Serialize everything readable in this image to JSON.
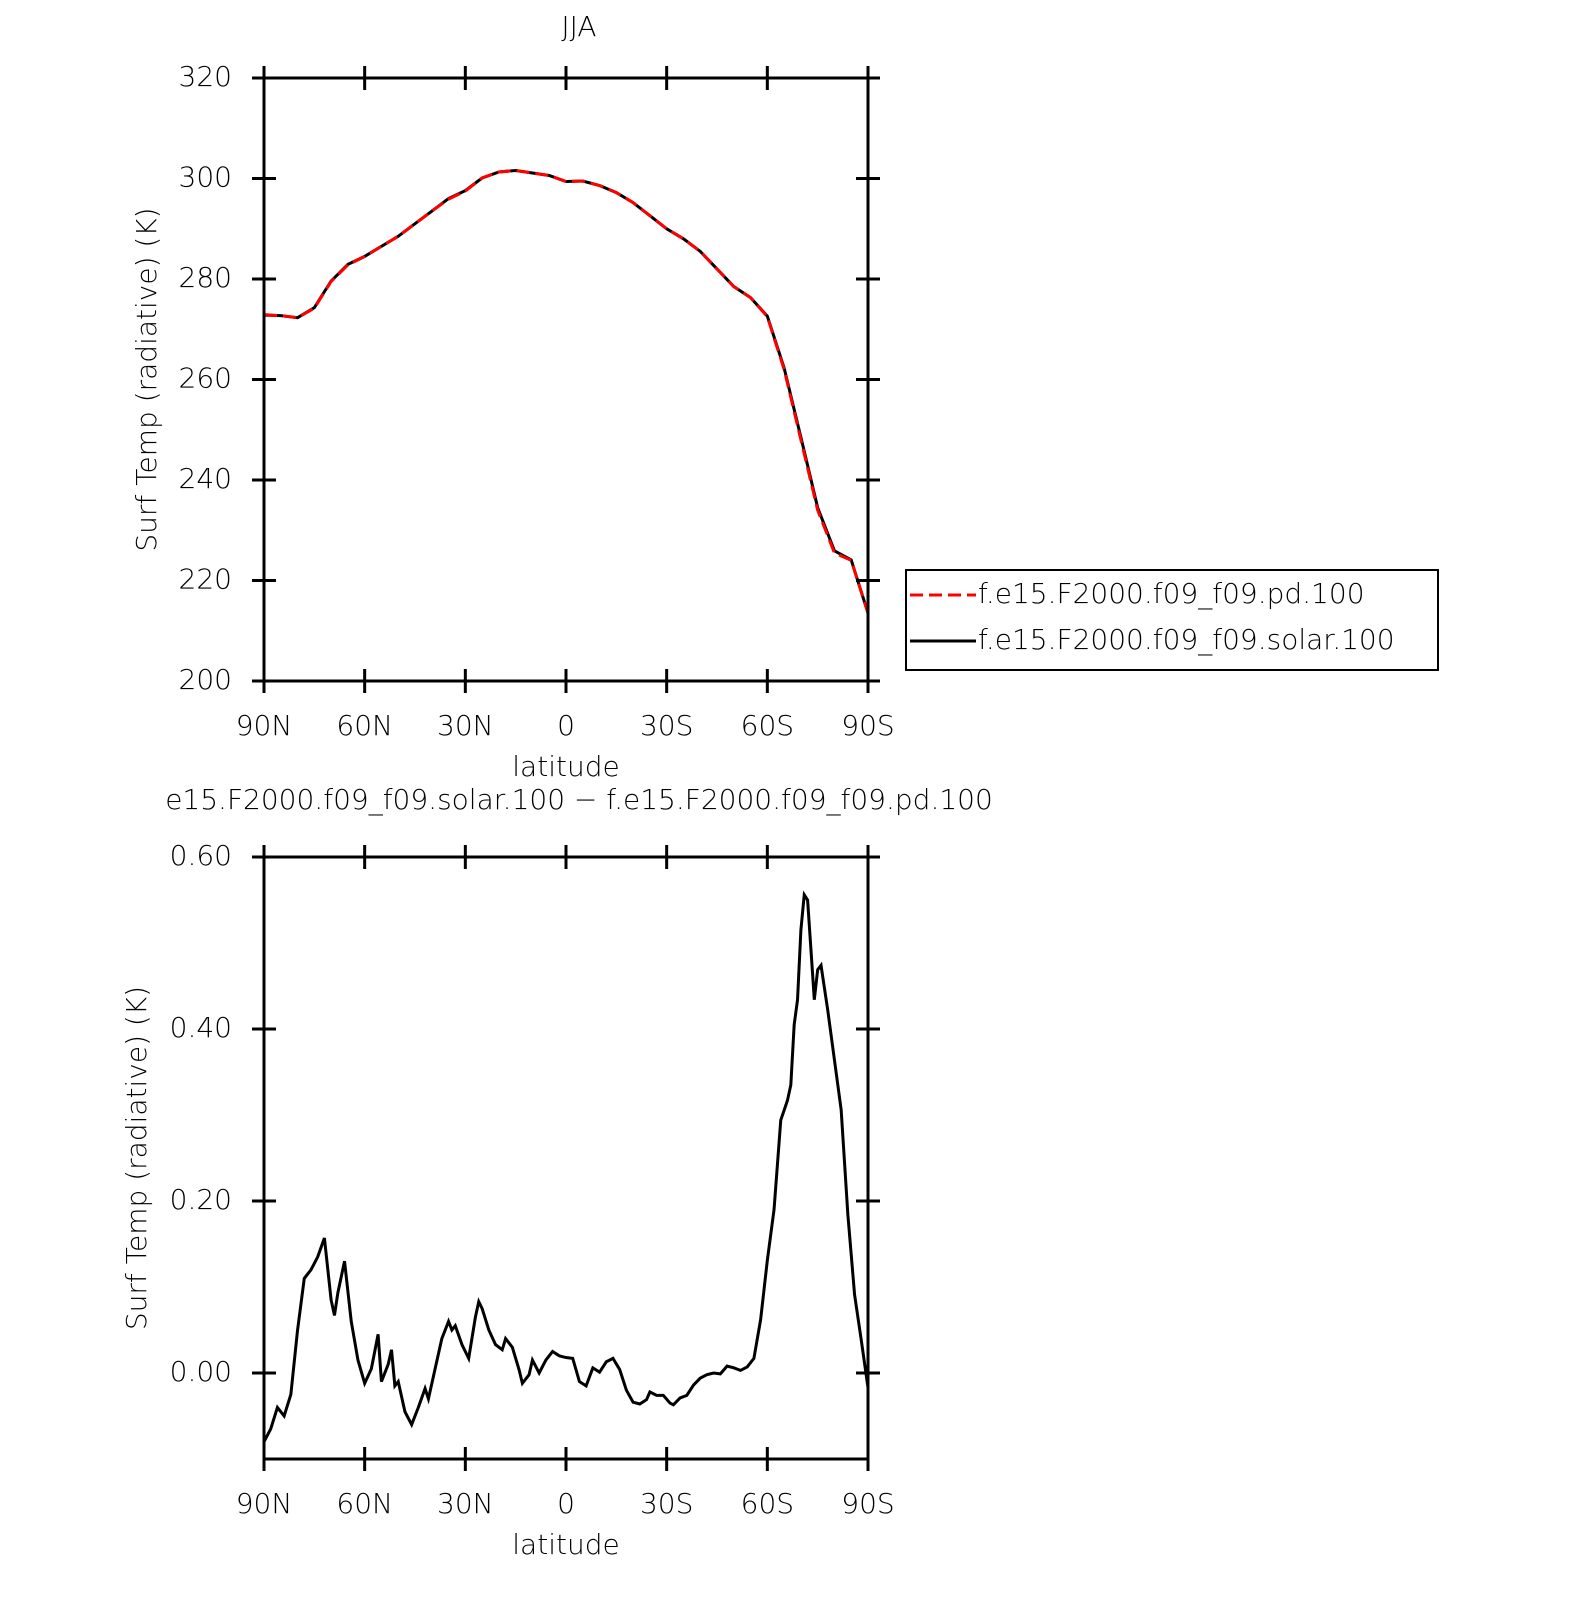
{
  "chart_data": [
    {
      "type": "line",
      "title": "JJA",
      "xlabel": "latitude",
      "ylabel": "Surf Temp (radiative) (K)",
      "x": [
        90,
        85,
        80,
        75,
        70,
        65,
        60,
        55,
        50,
        45,
        40,
        35,
        30,
        25,
        20,
        15,
        10,
        5,
        0,
        -5,
        -10,
        -15,
        -20,
        -25,
        -30,
        -35,
        -40,
        -45,
        -50,
        -55,
        -60,
        -65,
        -70,
        -75,
        -80,
        -85,
        -90
      ],
      "series": [
        {
          "name": "f.e15.F2000.f09_f09.pd.100",
          "color": "#ff0000",
          "line_style": "dashed",
          "values": [
            272.9,
            272.7,
            272.3,
            274.2,
            279.5,
            282.8,
            284.5,
            286.5,
            288.5,
            291,
            293.5,
            295.9,
            297.5,
            300.1,
            301.3,
            301.6,
            301.1,
            300.6,
            299.4,
            299.5,
            298.6,
            297.2,
            295.2,
            292.6,
            290,
            288,
            285.5,
            282,
            278.5,
            276.3,
            272.5,
            262,
            248,
            234,
            225.5,
            224,
            213.5
          ]
        },
        {
          "name": "f.e15.F2000.f09_f09.solar.100",
          "color": "#000000",
          "line_style": "solid",
          "values": [
            272.8,
            272.7,
            272.3,
            274.3,
            279.6,
            282.9,
            284.5,
            286.5,
            288.5,
            291,
            293.5,
            296,
            297.6,
            300.1,
            301.3,
            301.6,
            301.1,
            300.6,
            299.4,
            299.5,
            298.6,
            297.2,
            295.2,
            292.6,
            290,
            288,
            285.5,
            282,
            278.5,
            276.3,
            272.6,
            262.3,
            248.5,
            234.5,
            225.9,
            224.1,
            213.5
          ]
        }
      ],
      "xlim": [
        90,
        -90
      ],
      "xticks": [
        {
          "value": 90,
          "label": "90N"
        },
        {
          "value": 60,
          "label": "60N"
        },
        {
          "value": 30,
          "label": "30N"
        },
        0,
        {
          "value": -30,
          "label": "30S"
        },
        {
          "value": -60,
          "label": "60S"
        },
        {
          "value": -90,
          "label": "90S"
        }
      ],
      "ylim": [
        200,
        320
      ],
      "yticks": [
        200,
        220,
        240,
        260,
        280,
        300,
        320
      ],
      "legend": "right"
    },
    {
      "type": "line",
      "title": "e15.F2000.f09_f09.solar.100 − f.e15.F2000.f09_f09.pd.100",
      "xlabel": "latitude",
      "ylabel": "Surf Temp (radiative) (K)",
      "x": [
        90,
        88,
        86,
        84,
        82,
        80,
        78,
        76,
        74,
        72,
        70,
        69,
        68,
        66,
        64,
        62,
        60,
        58,
        56,
        55,
        53,
        52,
        51,
        50,
        48,
        46,
        44,
        42,
        41,
        39,
        37,
        35,
        34,
        33,
        31,
        29,
        27,
        26,
        25,
        23,
        21,
        19,
        18,
        16,
        14,
        13,
        11,
        10,
        8,
        6,
        4,
        2,
        0,
        -2,
        -4,
        -6,
        -8,
        -10,
        -12,
        -14,
        -16,
        -18,
        -20,
        -22,
        -24,
        -25,
        -27,
        -29,
        -31,
        -32,
        -34,
        -36,
        -38,
        -40,
        -42,
        -44,
        -46,
        -48,
        -50,
        -52,
        -54,
        -56,
        -58,
        -60,
        -62,
        -64,
        -66,
        -67,
        -68,
        -69,
        -70,
        -71,
        -72,
        -73,
        -74,
        -75,
        -76,
        -78,
        -80,
        -82,
        -84,
        -86,
        -88,
        -90
      ],
      "values": [
        -0.08,
        -0.065,
        -0.04,
        -0.05,
        -0.025,
        0.05,
        0.11,
        0.12,
        0.135,
        0.157,
        0.085,
        0.067,
        0.093,
        0.13,
        0.06,
        0.015,
        -0.012,
        0.005,
        0.045,
        -0.01,
        0.01,
        0.027,
        -0.015,
        -0.01,
        -0.045,
        -0.06,
        -0.04,
        -0.018,
        -0.03,
        0.005,
        0.04,
        0.06,
        0.05,
        0.055,
        0.033,
        0.017,
        0.065,
        0.083,
        0.075,
        0.05,
        0.033,
        0.027,
        0.04,
        0.03,
        0.004,
        -0.012,
        -0.002,
        0.015,
        0,
        0.015,
        0.025,
        0.02,
        0.018,
        0.017,
        -0.01,
        -0.015,
        0.006,
        0.001,
        0.013,
        0.017,
        0.004,
        -0.02,
        -0.034,
        -0.036,
        -0.031,
        -0.022,
        -0.026,
        -0.026,
        -0.035,
        -0.037,
        -0.029,
        -0.026,
        -0.014,
        -0.006,
        -0.002,
        0,
        -0.001,
        0.008,
        0.006,
        0.003,
        0.007,
        0.017,
        0.062,
        0.131,
        0.19,
        0.294,
        0.317,
        0.335,
        0.405,
        0.434,
        0.515,
        0.556,
        0.55,
        0.492,
        0.434,
        0.469,
        0.474,
        0.422,
        0.364,
        0.306,
        0.184,
        0.091,
        0.038,
        -0.017
      ],
      "color": "#000000",
      "xlim": [
        90,
        -90
      ],
      "xticks": [
        {
          "value": 90,
          "label": "90N"
        },
        {
          "value": 60,
          "label": "60N"
        },
        {
          "value": 30,
          "label": "30N"
        },
        0,
        {
          "value": -30,
          "label": "30S"
        },
        {
          "value": -60,
          "label": "60S"
        },
        {
          "value": -90,
          "label": "90S"
        }
      ],
      "ylim": [
        -0.1,
        0.6
      ],
      "yticks": [
        {
          "value": 0,
          "label": "0.00"
        },
        {
          "value": 0.2,
          "label": "0.20"
        },
        {
          "value": 0.4,
          "label": "0.40"
        },
        {
          "value": 0.6,
          "label": "0.60"
        }
      ]
    }
  ]
}
